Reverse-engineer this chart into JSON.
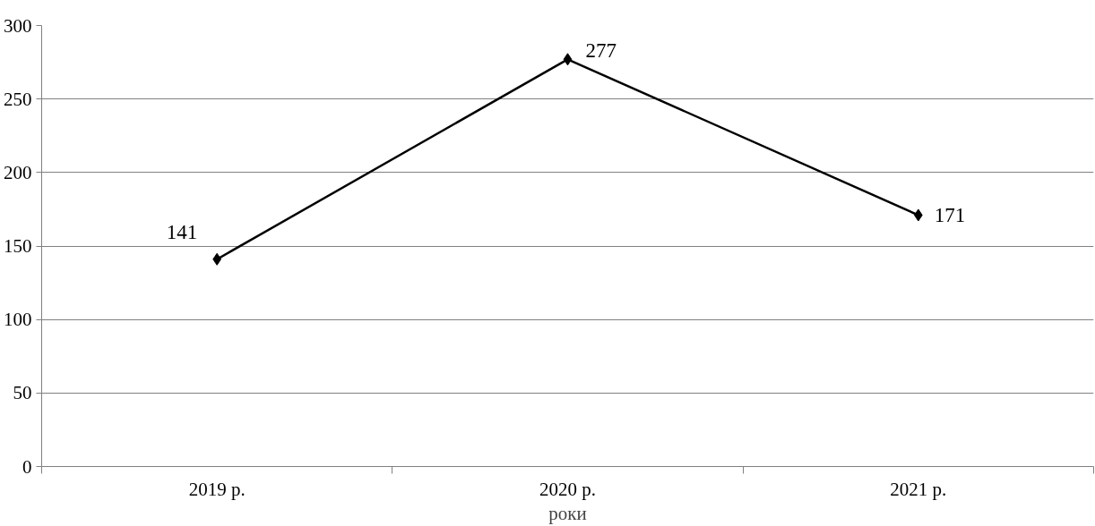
{
  "chart_data": {
    "type": "line",
    "xlabel": "роки",
    "categories": [
      "2019 р.",
      "2020 р.",
      "2021 р."
    ],
    "series": [
      {
        "color": "#000000",
        "values": [
          141,
          277,
          171
        ]
      }
    ],
    "ylim": [
      0,
      300
    ],
    "yticks": [
      0,
      50,
      100,
      150,
      200,
      250,
      300
    ],
    "grid": "y",
    "marker": "diamond",
    "line_style": "solid",
    "data_labels": true
  }
}
